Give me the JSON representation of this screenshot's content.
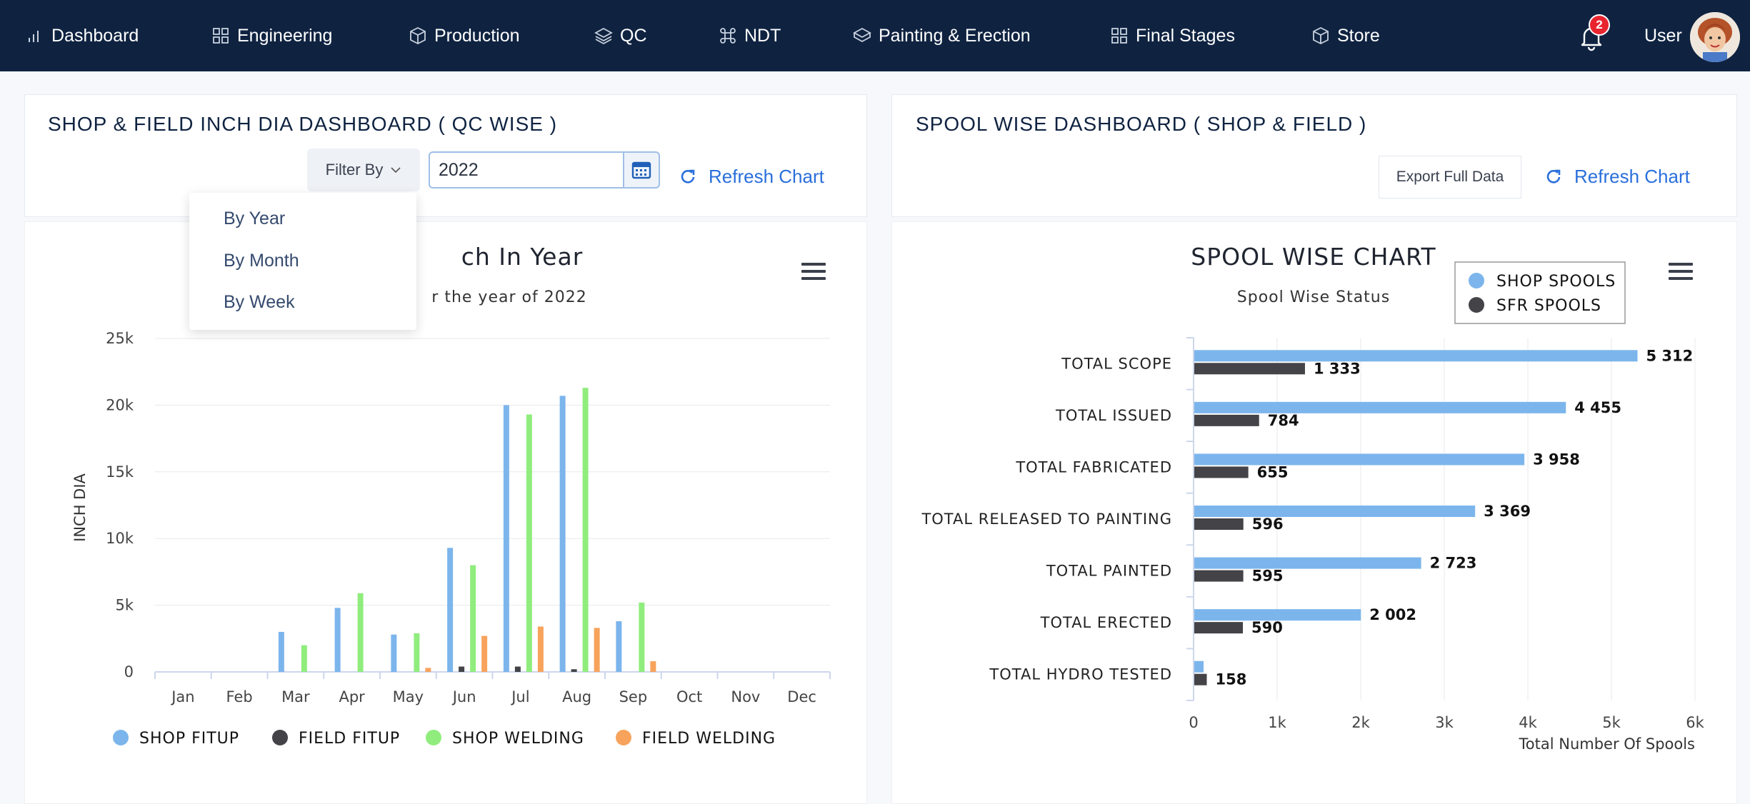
{
  "nav": {
    "items": [
      {
        "label": "Dashboard",
        "icon": "bar-chart-icon"
      },
      {
        "label": "Engineering",
        "icon": "grid-icon"
      },
      {
        "label": "Production",
        "icon": "cube-icon"
      },
      {
        "label": "QC",
        "icon": "layers-icon"
      },
      {
        "label": "NDT",
        "icon": "command-icon"
      },
      {
        "label": "Painting & Erection",
        "icon": "box-icon"
      },
      {
        "label": "Final Stages",
        "icon": "grid-icon"
      },
      {
        "label": "Store",
        "icon": "cube-icon"
      }
    ],
    "notification_count": "2",
    "user_label": "User"
  },
  "left_panel": {
    "title": "SHOP & FIELD INCH DIA DASHBOARD ( QC WISE )",
    "filter_label": "Filter By",
    "year_value": "2022",
    "refresh_label": "Refresh Chart",
    "dropdown_options": [
      "By Year",
      "By Month",
      "By Week"
    ]
  },
  "right_panel": {
    "title": "SPOOL WISE DASHBOARD ( SHOP & FIELD )",
    "export_label": "Export Full Data",
    "refresh_label": "Refresh Chart"
  },
  "chart_data": [
    {
      "type": "bar",
      "title": "ch In Year",
      "subtitle": "r the year of 2022",
      "xlabel": "",
      "ylabel": "INCH DIA",
      "ylim": [
        0,
        25000
      ],
      "yticks": [
        "0",
        "5k",
        "10k",
        "15k",
        "20k",
        "25k"
      ],
      "categories": [
        "Jan",
        "Feb",
        "Mar",
        "Apr",
        "May",
        "Jun",
        "Jul",
        "Aug",
        "Sep",
        "Oct",
        "Nov",
        "Dec"
      ],
      "series": [
        {
          "name": "SHOP FITUP",
          "color": "#7cb5ec",
          "values": [
            0,
            0,
            3000,
            4800,
            2800,
            9300,
            20000,
            20700,
            3800,
            0,
            0,
            0
          ]
        },
        {
          "name": "FIELD FITUP",
          "color": "#434348",
          "values": [
            0,
            0,
            0,
            0,
            0,
            400,
            400,
            200,
            0,
            0,
            0,
            0
          ]
        },
        {
          "name": "SHOP WELDING",
          "color": "#90ed7d",
          "values": [
            0,
            0,
            2000,
            5900,
            2900,
            8000,
            19300,
            21300,
            5200,
            0,
            0,
            0
          ]
        },
        {
          "name": "FIELD WELDING",
          "color": "#f7a35c",
          "values": [
            0,
            0,
            0,
            0,
            300,
            2700,
            3400,
            3300,
            800,
            0,
            0,
            0
          ]
        }
      ],
      "legend_position": "bottom",
      "grid": true
    },
    {
      "type": "bar",
      "orientation": "horizontal",
      "title": "SPOOL WISE CHART",
      "subtitle": "Spool Wise Status",
      "xlabel": "Total Number Of Spools",
      "ylabel": "",
      "xlim": [
        0,
        6000
      ],
      "xticks": [
        "0",
        "1k",
        "2k",
        "3k",
        "4k",
        "5k",
        "6k"
      ],
      "categories": [
        "TOTAL SCOPE",
        "TOTAL ISSUED",
        "TOTAL FABRICATED",
        "TOTAL RELEASED TO PAINTING",
        "TOTAL PAINTED",
        "TOTAL ERECTED",
        "TOTAL HYDRO TESTED"
      ],
      "series": [
        {
          "name": "SHOP SPOOLS",
          "color": "#7cb5ec",
          "values": [
            5312,
            4455,
            3958,
            3369,
            2723,
            2002,
            120
          ],
          "labels": [
            "5 312",
            "4 455",
            "3 958",
            "3 369",
            "2 723",
            "2 002",
            ""
          ]
        },
        {
          "name": "SFR SPOOLS",
          "color": "#434348",
          "values": [
            1333,
            784,
            655,
            596,
            595,
            590,
            158
          ],
          "labels": [
            "1 333",
            "784",
            "655",
            "596",
            "595",
            "590",
            "158"
          ]
        }
      ],
      "legend_position": "top-right",
      "grid": true
    }
  ]
}
